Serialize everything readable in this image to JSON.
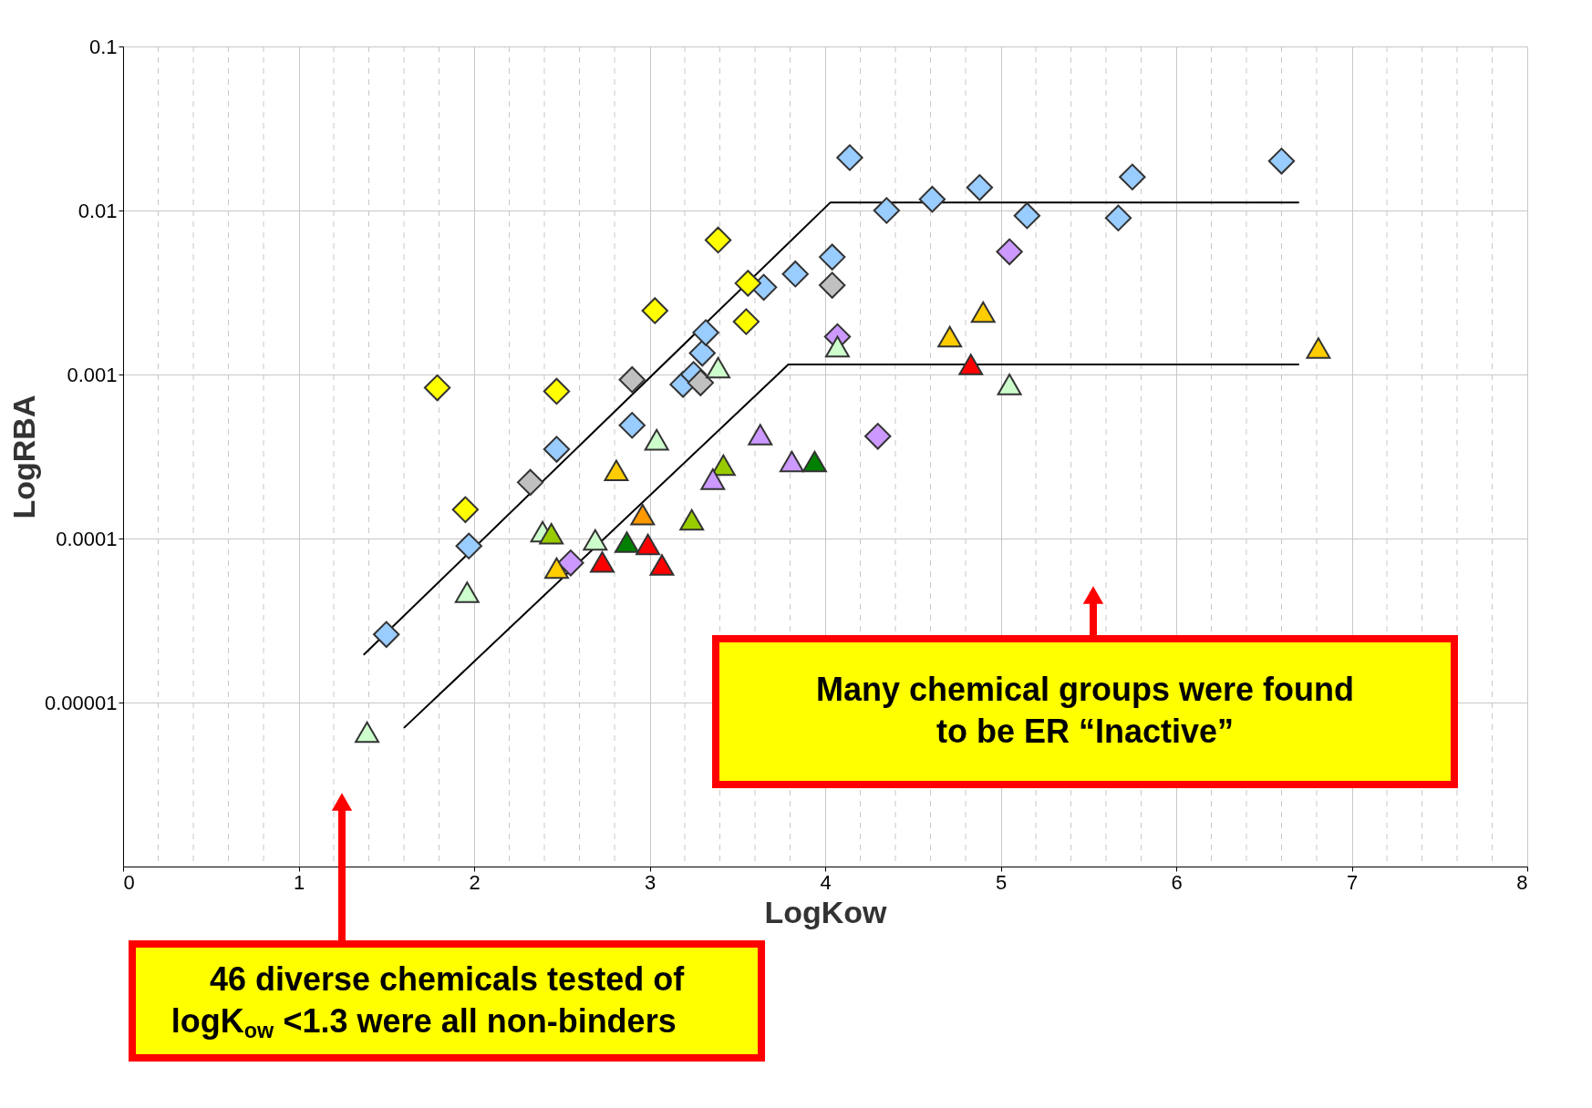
{
  "chart_data": {
    "type": "scatter",
    "xlabel": "LogKow",
    "ylabel": "LogRBA",
    "xlim": [
      0,
      8
    ],
    "xticks": [
      0,
      1,
      2,
      3,
      4,
      5,
      6,
      7,
      8
    ],
    "ylim": [
      1e-06,
      0.1
    ],
    "yticks": [
      0.1,
      0.01,
      0.001,
      {
        "value": 0.0001,
        "label": "0.0001"
      },
      {
        "value": 1e-05,
        "label": "0.00001"
      }
    ],
    "log": "y",
    "grid": true,
    "series": [
      {
        "type": "line",
        "color": "#000000",
        "marker": "none",
        "x": [
          1.37,
          4.03,
          6.7
        ],
        "values": [
          1.95e-05,
          0.0112,
          0.0112
        ]
      },
      {
        "type": "line",
        "color": "#000000",
        "marker": "none",
        "x": [
          1.6,
          3.79,
          6.7
        ],
        "values": [
          7e-06,
          0.00115,
          0.00115
        ]
      },
      {
        "color": "#99ccff",
        "marker": "diamond",
        "x": [
          1.5,
          1.97,
          2.47,
          2.9,
          3.19,
          3.25,
          3.3,
          3.32,
          3.65,
          3.83,
          4.04,
          4.14,
          4.35,
          4.61,
          4.88,
          5.15,
          5.67,
          5.75,
          6.6
        ],
        "values": [
          2.6e-05,
          9e-05,
          0.00035,
          0.00049,
          0.00087,
          0.001,
          0.00135,
          0.0018,
          0.0034,
          0.0041,
          0.0052,
          0.021,
          0.01,
          0.0117,
          0.0138,
          0.0093,
          0.009,
          0.016,
          0.02
        ]
      },
      {
        "color": "#ffff00",
        "marker": "diamond",
        "x": [
          1.79,
          1.95,
          2.47,
          3.03,
          3.39,
          3.56,
          3.55
        ],
        "values": [
          0.00083,
          0.00015,
          0.00079,
          0.00245,
          0.0066,
          0.0036,
          0.0021
        ]
      },
      {
        "color": "#c0c0c0",
        "marker": "diamond",
        "x": [
          2.32,
          2.9,
          3.29,
          4.04
        ],
        "values": [
          0.00022,
          0.00093,
          0.00089,
          0.0035
        ]
      },
      {
        "color": "#cc99ff",
        "marker": "diamond",
        "x": [
          2.55,
          4.07,
          4.3,
          5.05
        ],
        "values": [
          7.1e-05,
          0.0017,
          0.00042,
          0.0056
        ]
      },
      {
        "color": "#ccffcc",
        "marker": "triangle",
        "x": [
          1.39,
          1.96,
          2.39,
          2.69,
          3.04,
          3.39,
          4.07,
          5.05
        ],
        "values": [
          6.6e-06,
          4.7e-05,
          0.00011,
          9.8e-05,
          0.0004,
          0.0011,
          0.00148,
          0.00087
        ]
      },
      {
        "color": "#ffcc00",
        "marker": "triangle",
        "x": [
          2.47,
          2.81,
          4.71,
          4.9,
          6.81
        ],
        "values": [
          6.6e-05,
          0.00026,
          0.0017,
          0.0024,
          0.00145
        ]
      },
      {
        "color": "#ff9900",
        "marker": "triangle",
        "x": [
          2.96
        ],
        "values": [
          0.00014
        ]
      },
      {
        "color": "#ff0000",
        "marker": "triangle",
        "x": [
          2.73,
          2.99,
          3.07,
          4.83
        ],
        "values": [
          7.2e-05,
          9.2e-05,
          6.9e-05,
          0.00115
        ]
      },
      {
        "color": "#008000",
        "marker": "triangle",
        "x": [
          2.87,
          3.94
        ],
        "values": [
          9.5e-05,
          0.000295
        ]
      },
      {
        "color": "#99cc00",
        "marker": "triangle",
        "x": [
          2.44,
          3.24,
          3.42
        ],
        "values": [
          0.000107,
          0.00013,
          0.00028
        ]
      },
      {
        "color": "#cc99ff",
        "marker": "triangle",
        "x": [
          3.36,
          3.63,
          3.81
        ],
        "values": [
          0.00023,
          0.00043,
          0.000295
        ]
      }
    ],
    "annotations": [
      "Many chemical groups were found to be ER “Inactive”",
      "46 diverse chemicals tested of logK$_{ow}$ <1.3 were all non-binders"
    ]
  }
}
